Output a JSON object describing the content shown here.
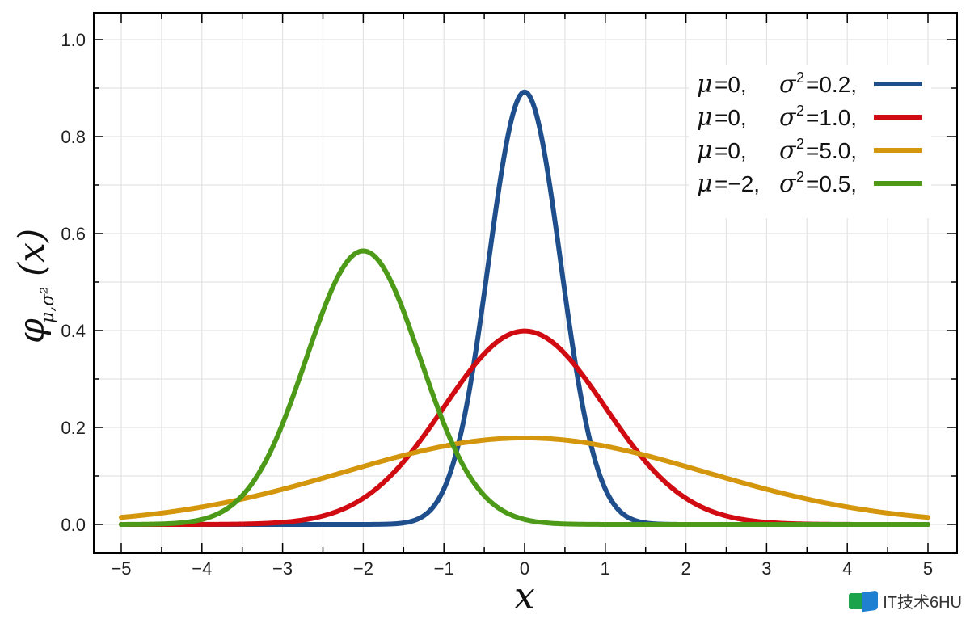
{
  "chart_data": {
    "type": "line",
    "xlabel": "x",
    "ylabel_main": "φ",
    "ylabel_sub": "μ,σ²",
    "ylabel_tail": "(x)",
    "xlim": [
      -5,
      5
    ],
    "ylim": [
      0,
      1.0
    ],
    "xticks": [
      -5,
      -4,
      -3,
      -2,
      -1,
      0,
      1,
      2,
      3,
      4,
      5
    ],
    "xtick_labels": [
      "−5",
      "−4",
      "−3",
      "−2",
      "−1",
      "0",
      "1",
      "2",
      "3",
      "4",
      "5"
    ],
    "yticks": [
      0.0,
      0.2,
      0.4,
      0.6,
      0.8,
      1.0
    ],
    "ytick_labels": [
      "0.0",
      "0.2",
      "0.4",
      "0.6",
      "0.8",
      "1.0"
    ],
    "grid": true,
    "legend_position": "top-right",
    "series": [
      {
        "mu": 0,
        "sigma2": 0.2,
        "color": "#1f4e8c",
        "legend": {
          "mu_text": "=0,",
          "sigma_text": "=0.2,"
        }
      },
      {
        "mu": 0,
        "sigma2": 1.0,
        "color": "#d00c12",
        "legend": {
          "mu_text": "=0,",
          "sigma_text": "=1.0,"
        }
      },
      {
        "mu": 0,
        "sigma2": 5.0,
        "color": "#d4960c",
        "legend": {
          "mu_text": "=0,",
          "sigma_text": "=5.0,"
        }
      },
      {
        "mu": -2,
        "sigma2": 0.5,
        "color": "#4c9a17",
        "legend": {
          "mu_text": "=−2,",
          "sigma_text": "=0.5,"
        }
      }
    ],
    "x_samples": [
      -5,
      -4.5,
      -4,
      -3.5,
      -3,
      -2.5,
      -2,
      -1.5,
      -1,
      -0.5,
      0,
      0.5,
      1,
      1.5,
      2,
      2.5,
      3,
      3.5,
      4,
      4.5,
      5
    ],
    "y_series": [
      [
        0.0,
        0.0,
        0.0,
        0.0,
        0.0,
        0.0,
        0.0,
        0.0031,
        0.0732,
        0.4566,
        0.8921,
        0.4566,
        0.0732,
        0.0031,
        0.0,
        0.0,
        0.0,
        0.0,
        0.0,
        0.0,
        0.0
      ],
      [
        1.5e-06,
        1.6e-05,
        0.000134,
        0.000873,
        0.00443,
        0.0175,
        0.054,
        0.1295,
        0.242,
        0.3521,
        0.3989,
        0.3521,
        0.242,
        0.1295,
        0.054,
        0.0175,
        0.00443,
        0.000873,
        0.000134,
        1.6e-05,
        1.5e-06
      ],
      [
        0.0146,
        0.0235,
        0.0359,
        0.0523,
        0.0725,
        0.0958,
        0.1202,
        0.1434,
        0.163,
        0.1762,
        0.1784,
        0.1762,
        0.163,
        0.1434,
        0.1202,
        0.0958,
        0.0725,
        0.0523,
        0.0359,
        0.0235,
        0.0146
      ],
      [
        7e-06,
        0.00025,
        0.0103,
        0.0833,
        0.2076,
        0.4839,
        0.5642,
        0.4839,
        0.2076,
        0.0611,
        0.0103,
        0.0011,
        6.9e-05,
        2.8e-06,
        7e-08,
        0.0,
        0.0,
        0.0,
        0.0,
        0.0,
        0.0
      ]
    ]
  },
  "legend": {
    "mu_symbol": "μ",
    "sigma_symbol": "σ",
    "sigma_sup": "2"
  },
  "watermark": {
    "text": "IT技术6HU"
  }
}
